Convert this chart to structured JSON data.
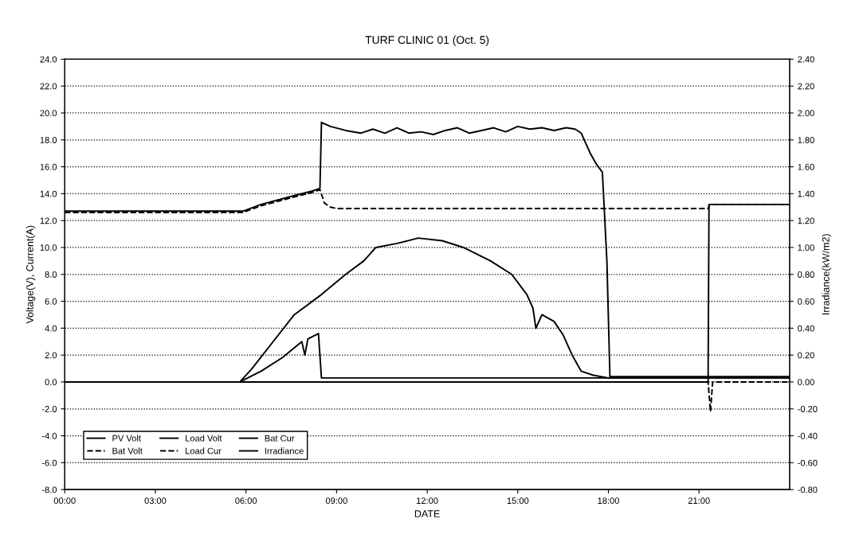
{
  "chart_data": {
    "type": "line",
    "title": "TURF CLINIC 01 (Oct. 5)",
    "xlabel": "DATE",
    "ylabel": "Voltage(V), Current(A)",
    "y2label": "Irradiance(kW/m2)",
    "xlim": [
      0,
      24
    ],
    "xticks": [
      {
        "value": 0,
        "label": "00:00"
      },
      {
        "value": 3,
        "label": "03:00"
      },
      {
        "value": 6,
        "label": "06:00"
      },
      {
        "value": 9,
        "label": "09:00"
      },
      {
        "value": 12,
        "label": "12:00"
      },
      {
        "value": 15,
        "label": "15:00"
      },
      {
        "value": 18,
        "label": "18:00"
      },
      {
        "value": 21,
        "label": "21:00"
      }
    ],
    "ylim": [
      -8,
      24
    ],
    "yticks": [
      {
        "value": -8,
        "label": "-8.0"
      },
      {
        "value": -6,
        "label": "-6.0"
      },
      {
        "value": -4,
        "label": "-4.0"
      },
      {
        "value": -2,
        "label": "-2.0"
      },
      {
        "value": 0,
        "label": "0.0"
      },
      {
        "value": 2,
        "label": "2.0"
      },
      {
        "value": 4,
        "label": "4.0"
      },
      {
        "value": 6,
        "label": "6.0"
      },
      {
        "value": 8,
        "label": "8.0"
      },
      {
        "value": 10,
        "label": "10.0"
      },
      {
        "value": 12,
        "label": "12.0"
      },
      {
        "value": 14,
        "label": "14.0"
      },
      {
        "value": 16,
        "label": "16.0"
      },
      {
        "value": 18,
        "label": "18.0"
      },
      {
        "value": 20,
        "label": "20.0"
      },
      {
        "value": 22,
        "label": "22.0"
      },
      {
        "value": 24,
        "label": "24.0"
      }
    ],
    "y2lim": [
      -0.8,
      2.4
    ],
    "y2ticks": [
      {
        "value": -0.8,
        "label": "-0.80"
      },
      {
        "value": -0.6,
        "label": "-0.60"
      },
      {
        "value": -0.4,
        "label": "-0.40"
      },
      {
        "value": -0.2,
        "label": "-0.20"
      },
      {
        "value": 0,
        "label": "0.00"
      },
      {
        "value": 0.2,
        "label": "0.20"
      },
      {
        "value": 0.4,
        "label": "0.40"
      },
      {
        "value": 0.6,
        "label": "0.60"
      },
      {
        "value": 0.8,
        "label": "0.80"
      },
      {
        "value": 1,
        "label": "1.00"
      },
      {
        "value": 1.2,
        "label": "1.20"
      },
      {
        "value": 1.4,
        "label": "1.40"
      },
      {
        "value": 1.6,
        "label": "1.60"
      },
      {
        "value": 1.8,
        "label": "1.80"
      },
      {
        "value": 2,
        "label": "2.00"
      },
      {
        "value": 2.2,
        "label": "2.20"
      },
      {
        "value": 2.4,
        "label": "2.40"
      }
    ],
    "grid": "y",
    "legend": "bottom left",
    "marker": "none",
    "series": [
      {
        "name": "PV Volt",
        "color": "#000000",
        "line_style": "solid",
        "x": [
          0,
          5.9,
          6.5,
          7.5,
          8.2,
          8.45,
          8.5,
          8.8,
          9.3,
          9.8,
          10.2,
          10.6,
          11.0,
          11.4,
          11.8,
          12.2,
          12.6,
          13.0,
          13.4,
          13.8,
          14.2,
          14.6,
          15.0,
          15.4,
          15.8,
          16.2,
          16.6,
          16.9,
          17.1,
          17.4,
          17.6,
          17.8,
          17.95,
          18.05,
          24
        ],
        "values": [
          12.7,
          12.7,
          13.2,
          13.8,
          14.2,
          14.4,
          19.3,
          19.0,
          18.7,
          18.5,
          18.8,
          18.5,
          18.9,
          18.5,
          18.6,
          18.4,
          18.7,
          18.9,
          18.5,
          18.7,
          18.9,
          18.6,
          19.0,
          18.8,
          18.9,
          18.7,
          18.9,
          18.8,
          18.5,
          17.0,
          16.2,
          15.6,
          9.0,
          0.4,
          0.4
        ]
      },
      {
        "name": "Load Volt",
        "color": "#000000",
        "line_style": "solid",
        "x": [
          0,
          21.3,
          21.33,
          24
        ],
        "values": [
          0,
          0,
          13.2,
          13.2
        ]
      },
      {
        "name": "Bat Cur",
        "color": "#000000",
        "line_style": "solid",
        "x": [
          0,
          5.8,
          6.5,
          7.2,
          7.85,
          7.95,
          8.05,
          8.4,
          8.5,
          24
        ],
        "values": [
          0,
          0,
          0.8,
          1.8,
          3.0,
          2.0,
          3.2,
          3.6,
          0.3,
          0.3
        ]
      },
      {
        "name": "Bat Volt",
        "color": "#000000",
        "line_style": "dashed",
        "x": [
          0,
          5.9,
          6.5,
          7.5,
          8.2,
          8.45,
          8.6,
          8.8,
          9.0,
          21.3,
          21.35,
          24
        ],
        "values": [
          12.6,
          12.6,
          13.1,
          13.7,
          14.1,
          14.3,
          13.3,
          13.0,
          12.9,
          12.9,
          13.2,
          13.2
        ]
      },
      {
        "name": "Load Cur",
        "color": "#000000",
        "line_style": "dashed",
        "x": [
          0,
          21.3,
          21.38,
          21.45,
          24
        ],
        "values": [
          0,
          0,
          -2.2,
          0,
          0
        ]
      },
      {
        "name": "Irradiance",
        "color": "#000000",
        "line_style": "solid",
        "axis": "y2",
        "x": [
          0,
          5.8,
          6.2,
          6.9,
          7.6,
          8.5,
          9.3,
          9.9,
          10.3,
          11.0,
          11.7,
          12.5,
          13.2,
          14.1,
          14.8,
          15.3,
          15.5,
          15.6,
          15.8,
          16.2,
          16.5,
          16.8,
          17.1,
          17.5,
          18.0,
          24
        ],
        "values": [
          0,
          0,
          0.1,
          0.3,
          0.5,
          0.65,
          0.8,
          0.9,
          1.0,
          1.03,
          1.07,
          1.05,
          1.0,
          0.9,
          0.8,
          0.65,
          0.55,
          0.4,
          0.5,
          0.45,
          0.35,
          0.2,
          0.08,
          0.05,
          0.03,
          0.03
        ]
      }
    ]
  }
}
